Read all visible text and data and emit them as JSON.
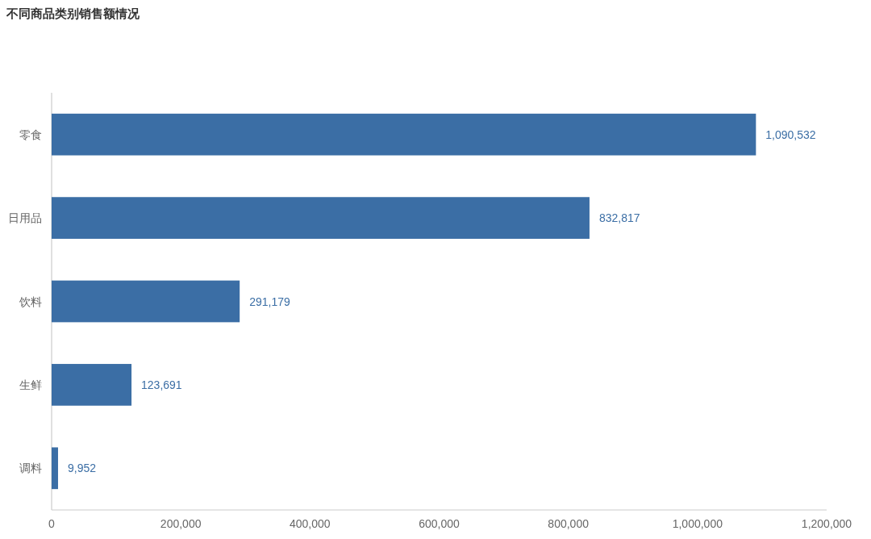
{
  "chart_data": {
    "type": "bar",
    "orientation": "horizontal",
    "title": "不同商品类别销售额情况",
    "categories": [
      "零食",
      "日用品",
      "饮料",
      "生鲜",
      "调料"
    ],
    "values": [
      1090532,
      832817,
      291179,
      123691,
      9952
    ],
    "value_labels": [
      "1,090,532",
      "832,817",
      "291,179",
      "123,691",
      "9,952"
    ],
    "color": "#3b6ea5",
    "xlim": [
      0,
      1200000
    ],
    "xticks": [
      0,
      {
        "value": 200000,
        "label": "200,000"
      },
      {
        "value": 400000,
        "label": "400,000"
      },
      {
        "value": 600000,
        "label": "600,000"
      },
      {
        "value": 800000,
        "label": "800,000"
      },
      {
        "value": 1000000,
        "label": "1,000,000"
      },
      {
        "value": 1200000,
        "label": "1,200,000"
      }
    ]
  }
}
